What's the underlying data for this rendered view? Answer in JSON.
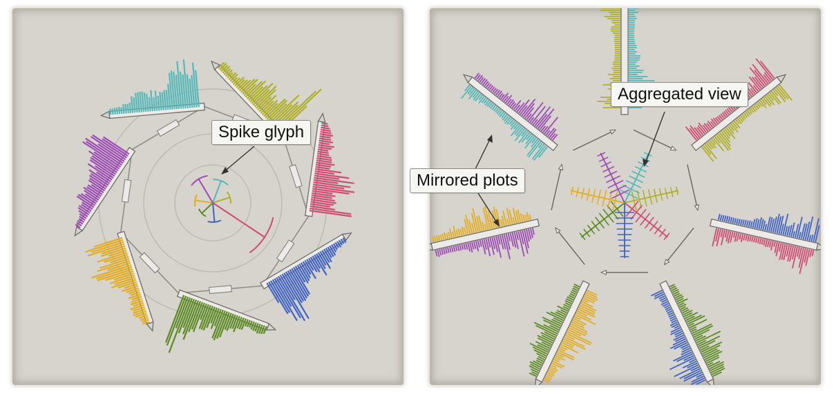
{
  "left_panel": {
    "callout": "Spike glyph",
    "axes": [
      {
        "color": "#52b8b8"
      },
      {
        "color": "#b0b028"
      },
      {
        "color": "#d14a72"
      },
      {
        "color": "#3f63c4"
      },
      {
        "color": "#5b8a22"
      },
      {
        "color": "#e4ad20"
      },
      {
        "color": "#9c4bb4"
      }
    ]
  },
  "right_panel": {
    "callouts": {
      "aggregated": "Aggregated view",
      "mirrored": "Mirrored plots"
    },
    "axes": [
      {
        "color_a": "#52b8b8",
        "color_b": "#b0b028"
      },
      {
        "color_a": "#b0b028",
        "color_b": "#d14a72"
      },
      {
        "color_a": "#d14a72",
        "color_b": "#3f63c4"
      },
      {
        "color_a": "#3f63c4",
        "color_b": "#5b8a22"
      },
      {
        "color_a": "#5b8a22",
        "color_b": "#e4ad20"
      },
      {
        "color_a": "#e4ad20",
        "color_b": "#9c4bb4"
      },
      {
        "color_a": "#9c4bb4",
        "color_b": "#52b8b8"
      }
    ]
  }
}
